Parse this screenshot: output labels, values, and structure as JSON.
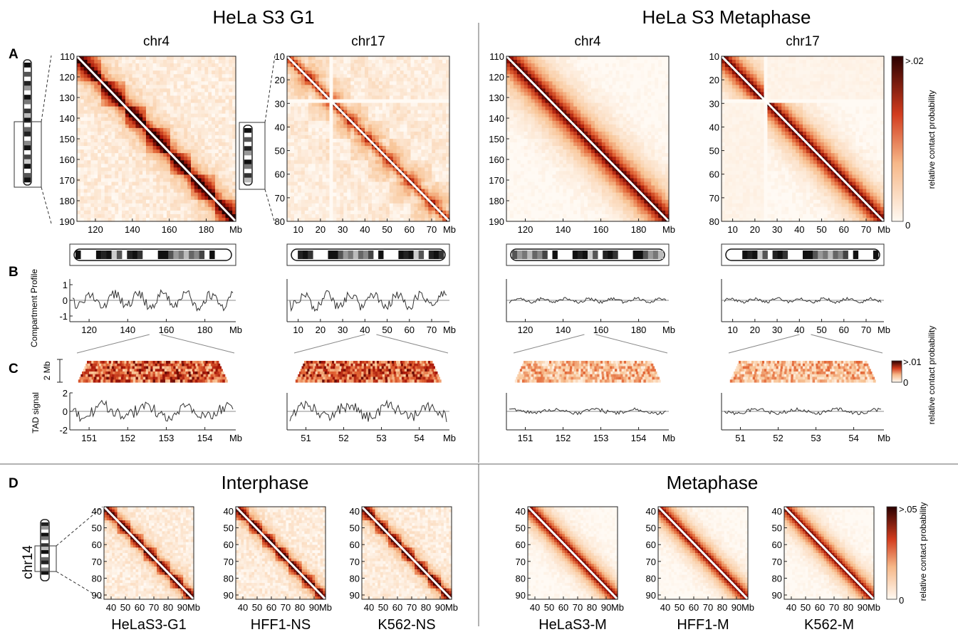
{
  "headers": {
    "g1": "HeLa S3 G1",
    "metaphase": "HeLa S3 Metaphase",
    "interphase": "Interphase",
    "metaphase_d": "Metaphase"
  },
  "panel_letters": {
    "a": "A",
    "b": "B",
    "c": "C",
    "d": "D"
  },
  "mb": "Mb",
  "maps_a": [
    {
      "id": "g1-chr4",
      "title": "chr4",
      "style": "g1chr4",
      "y_ticks": [
        "110",
        "120",
        "130",
        "140",
        "150",
        "160",
        "170",
        "180",
        "190"
      ],
      "x_ticks": [
        "120",
        "140",
        "160",
        "180"
      ]
    },
    {
      "id": "g1-chr17",
      "title": "chr17",
      "style": "g1chr17",
      "y_ticks": [
        "10",
        "20",
        "30",
        "40",
        "50",
        "60",
        "70",
        "80"
      ],
      "x_ticks": [
        "10",
        "20",
        "30",
        "40",
        "50",
        "60",
        "70"
      ]
    },
    {
      "id": "m-chr4",
      "title": "chr4",
      "style": "mchr4",
      "y_ticks": [
        "110",
        "120",
        "130",
        "140",
        "150",
        "160",
        "170",
        "180",
        "190"
      ],
      "x_ticks": [
        "120",
        "140",
        "160",
        "180"
      ]
    },
    {
      "id": "m-chr17",
      "title": "chr17",
      "style": "mchr17",
      "y_ticks": [
        "10",
        "20",
        "30",
        "40",
        "50",
        "60",
        "70",
        "80"
      ],
      "x_ticks": [
        "10",
        "20",
        "30",
        "40",
        "50",
        "60",
        "70"
      ]
    }
  ],
  "colorbar_a": {
    "max": ">.02",
    "min": "0",
    "label": "relative contact probability"
  },
  "panel_b": {
    "ylabel": "Compartment Profile",
    "y_ticks": [
      "1",
      "0",
      "-1"
    ],
    "x_ticks": [
      [
        "120",
        "140",
        "160",
        "180"
      ],
      [
        "10",
        "20",
        "30",
        "40",
        "50",
        "60",
        "70"
      ],
      [
        "120",
        "140",
        "160",
        "180"
      ],
      [
        "10",
        "20",
        "30",
        "40",
        "50",
        "60",
        "70"
      ]
    ]
  },
  "panel_c": {
    "scale_label": "2 Mb",
    "tad_ylabel": "TAD signal",
    "tad_y_ticks": [
      "2",
      "0",
      "-2"
    ],
    "x_ticks": [
      [
        "151",
        "152",
        "153",
        "154"
      ],
      [
        "51",
        "52",
        "53",
        "54"
      ],
      [
        "151",
        "152",
        "153",
        "154"
      ],
      [
        "51",
        "52",
        "53",
        "54"
      ]
    ],
    "colorbar": {
      "max": ">.01",
      "min": "0",
      "label": "relative contact probability"
    }
  },
  "panel_d": {
    "chromosome": "chr14",
    "y_ticks": [
      "40",
      "50",
      "60",
      "70",
      "80",
      "90"
    ],
    "x_ticks": [
      "40",
      "50",
      "60",
      "70",
      "80",
      "90"
    ],
    "maps": [
      {
        "name": "HeLaS3-G1",
        "style": "int"
      },
      {
        "name": "HFF1-NS",
        "style": "int"
      },
      {
        "name": "K562-NS",
        "style": "int"
      },
      {
        "name": "HeLaS3-M",
        "style": "met"
      },
      {
        "name": "HFF1-M",
        "style": "met"
      },
      {
        "name": "K562-M",
        "style": "met"
      }
    ],
    "colorbar": {
      "max": ">.05",
      "min": "0",
      "label": "relative contact probability"
    }
  },
  "colors": {
    "heat_dark": "#3a0000",
    "heat_mid": "#d23c1e",
    "heat_light": "#fff7ef"
  }
}
